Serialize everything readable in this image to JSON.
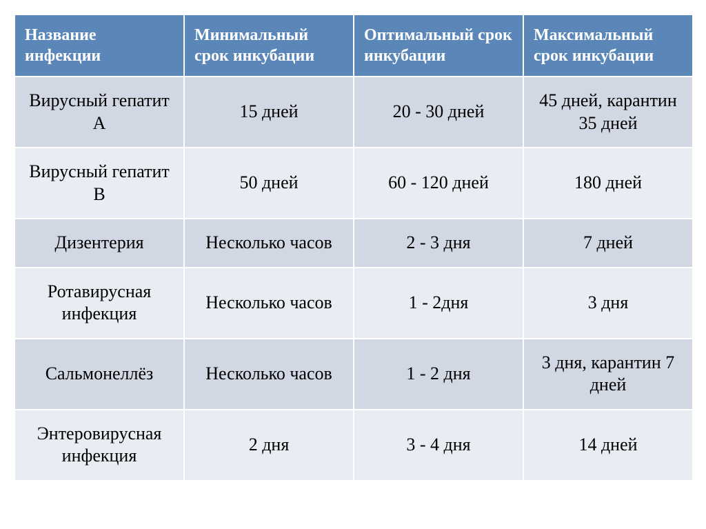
{
  "table": {
    "header_bg": "#5a87b8",
    "header_fg": "#ffffff",
    "band_colors": [
      "#d1d8e4",
      "#e9ecf2"
    ],
    "border_color": "#ffffff",
    "header_fontsize": 24,
    "cell_fontsize": 26,
    "columns": [
      "Название инфекции",
      "Минимальный срок инкубации",
      "Оптимальный срок инкубации",
      "Максимальный срок инкубации"
    ],
    "rows": [
      [
        "Вирусный гепатит А",
        "15 дней",
        "20 - 30 дней",
        "45 дней, карантин 35 дней"
      ],
      [
        "Вирусный гепатит В",
        "50 дней",
        "60 - 120 дней",
        "180 дней"
      ],
      [
        "Дизентерия",
        "Несколько часов",
        "2 - 3 дня",
        "7 дней"
      ],
      [
        "Ротавирусная инфекция",
        "Несколько часов",
        "1 - 2дня",
        "3 дня"
      ],
      [
        "Сальмонеллёз",
        "Несколько часов",
        "1 - 2 дня",
        "3 дня, карантин 7 дней"
      ],
      [
        "Энтеровирусная инфекция",
        "2 дня",
        "3 - 4 дня",
        "14 дней"
      ]
    ]
  }
}
